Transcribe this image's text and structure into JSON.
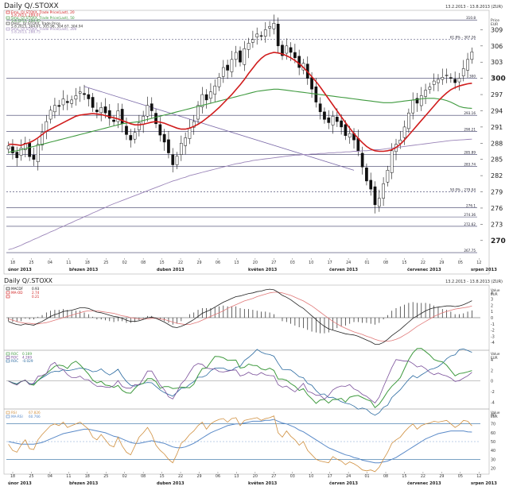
{
  "colors": {
    "up": "#ffffff",
    "down": "#111111",
    "ma20": "#d01c1c",
    "ma50": "#3f9a3f",
    "ma200": "#9a84b8",
    "fib": "#2a2a7a",
    "grid": "#3a3a66"
  },
  "top": {
    "title": "Daily Q/.STOXX",
    "date_range": "13.2.2013 - 13.8.2013 (ZUR)",
    "corner_labels": [
      "Price",
      "EUR"
    ],
    "legend": [
      {
        "name": "Ema, Q/.STOXX, Trade Price(Last), 20",
        "value": "5.8.2013, 299.07",
        "color": "#d01c1c"
      },
      {
        "name": "Sma, Q/.STOXX, Trade Price(Last), 50",
        "value": "5.8.2013, 294.45",
        "color": "#3f9a3f"
      },
      {
        "name": "OHLC, Q/.STOXX, Trade Price",
        "value": "5.8.2013, 304.67, 305.98, 304.67, 304.94",
        "color": "#333333"
      },
      {
        "name": "Sma, Q/.STOXX, Trade Price(Last), 200",
        "value": "5.8.2013, 288.75",
        "color": "#9a84b8"
      }
    ],
    "fib_labels": [
      {
        "y": 310.8,
        "text": "310.8"
      },
      {
        "y": 307.26,
        "text": "61.8% - 307.26"
      },
      {
        "y": 300.0,
        "text": "300"
      },
      {
        "y": 293.16,
        "text": "293.16"
      },
      {
        "y": 290.21,
        "text": "290.21"
      },
      {
        "y": 285.89,
        "text": "285.89"
      },
      {
        "y": 283.74,
        "text": "283.74"
      },
      {
        "y": 279.04,
        "text": "50.0% - 279.04"
      },
      {
        "y": 276.1,
        "text": "276.1"
      },
      {
        "y": 274.36,
        "text": "274.36"
      },
      {
        "y": 272.62,
        "text": "272.62"
      },
      {
        "y": 267.75,
        "text": "267.75"
      }
    ]
  },
  "x_axis": {
    "day_labels": [
      "18",
      "25",
      "04",
      "11",
      "18",
      "25",
      "02",
      "08",
      "15",
      "22",
      "29",
      "06",
      "13",
      "20",
      "27",
      "03",
      "10",
      "17",
      "24",
      "01",
      "08",
      "15",
      "22",
      "29",
      "05",
      "12"
    ],
    "month_labels": [
      "únor 2013",
      "březen 2013",
      "duben 2013",
      "květen 2013",
      "červen 2013",
      "červenec 2013",
      "srpen 2013"
    ]
  },
  "macd": {
    "title": "Daily Q/.STOXX",
    "date_range": "13.2.2013 - 13.8.2013 (ZUR)",
    "legend": [
      {
        "name": "MACDF",
        "value": "0.93",
        "color": "#111111"
      },
      {
        "name": "MA-OD",
        "value": "2.74",
        "color": "#d01c1c"
      },
      {
        "name": "",
        "value": "0.21",
        "color": "#d01c1c"
      }
    ],
    "corner_labels": [
      "Value",
      "EUR"
    ]
  },
  "roc": {
    "legend": [
      {
        "name": "ROC",
        "value": "0.169",
        "color": "#3f9a3f"
      },
      {
        "name": "ROC",
        "value": "4.269",
        "color": "#7a4f9a"
      },
      {
        "name": "ROC",
        "value": "-0.029",
        "color": "#2a6aa0"
      }
    ],
    "corner_labels": [
      "Value",
      "EUR"
    ]
  },
  "rsi": {
    "legend": [
      {
        "name": "RSI",
        "value": "67.826",
        "color": "#d09040"
      },
      {
        "name": "MA-RSI",
        "value": "60.766",
        "color": "#5a8ac8"
      }
    ],
    "corner_labels": [
      "Value",
      "EUR"
    ]
  },
  "chart_data": [
    {
      "type": "candlestick",
      "title": "Daily Q/.STOXX",
      "ylim": [
        266,
        312
      ],
      "y_ticks": [
        270,
        273,
        276,
        279,
        282,
        285,
        288,
        291,
        294,
        297,
        300,
        303,
        306,
        309
      ],
      "series": [
        {
          "name": "Ema, Q/.STOXX, Trade Price(Last), 20"
        },
        {
          "name": "Sma, Q/.STOXX, Trade Price(Last), 50"
        },
        {
          "name": "OHLC, Q/.STOXX, Trade Price"
        },
        {
          "name": "Sma, Q/.STOXX, Trade Price(Last), 200"
        }
      ],
      "closes": [
        287.5,
        286.2,
        285.3,
        287.1,
        288.0,
        285.5,
        285.0,
        287.8,
        290.0,
        292.0,
        294.1,
        295.0,
        294.8,
        296.2,
        295.5,
        296.0,
        296.8,
        297.5,
        297.0,
        296.2,
        294.6,
        293.8,
        294.6,
        293.6,
        292.6,
        292.0,
        294.0,
        291.6,
        289.6,
        288.6,
        290.0,
        291.8,
        293.0,
        295.0,
        294.0,
        291.6,
        289.5,
        288.2,
        286.2,
        284.0,
        285.6,
        288.0,
        289.0,
        290.8,
        292.0,
        295.0,
        297.0,
        296.0,
        297.5,
        298.6,
        300.2,
        302.0,
        301.5,
        303.5,
        304.8,
        303.0,
        305.5,
        306.5,
        307.2,
        308.2,
        307.8,
        309.0,
        309.6,
        310.2,
        306.0,
        304.2,
        306.0,
        304.8,
        303.8,
        302.0,
        302.8,
        300.0,
        298.0,
        295.6,
        293.8,
        292.4,
        291.8,
        293.0,
        292.0,
        291.0,
        289.4,
        289.8,
        288.6,
        286.6,
        283.6,
        281.0,
        279.5,
        276.6,
        277.8,
        280.5,
        283.0,
        286.6,
        287.8,
        288.6,
        291.0,
        293.6,
        296.0,
        295.4,
        296.8,
        297.8,
        298.4,
        299.5,
        299.8,
        300.2,
        300.6,
        300.0,
        299.2,
        300.0,
        301.8,
        303.5,
        304.9
      ],
      "ema20": [
        287.8,
        287.8,
        287.7,
        287.6,
        287.9,
        288.1,
        288.5,
        289.0,
        289.6,
        290.2,
        290.6,
        291.0,
        291.4,
        291.8,
        292.2,
        292.6,
        293.0,
        293.2,
        293.3,
        293.4,
        293.5,
        293.4,
        293.3,
        293.1,
        292.9,
        292.7,
        292.5,
        292.2,
        291.9,
        291.6,
        291.4,
        291.4,
        291.5,
        291.7,
        291.9,
        292.0,
        291.9,
        291.7,
        291.4,
        291.1,
        290.8,
        290.6,
        290.6,
        290.8,
        291.1,
        291.5,
        292.0,
        292.6,
        293.2,
        293.9,
        294.6,
        295.4,
        296.2,
        297.0,
        297.9,
        298.8,
        299.8,
        300.9,
        301.9,
        302.9,
        303.7,
        304.3,
        304.6,
        304.8,
        304.7,
        304.5,
        304.2,
        303.8,
        303.3,
        302.7,
        302.0,
        301.2,
        300.3,
        299.4,
        298.4,
        297.3,
        296.2,
        295.1,
        294.0,
        292.9,
        291.8,
        290.8,
        289.8,
        288.9,
        288.1,
        287.4,
        286.9,
        286.6,
        286.5,
        286.5,
        286.6,
        286.8,
        287.2,
        287.8,
        288.6,
        289.5,
        290.4,
        291.3,
        292.2,
        293.1,
        294.0,
        294.9,
        295.8,
        296.6,
        297.3,
        297.9,
        298.3,
        298.6,
        298.8,
        299.0,
        299.1
      ],
      "sma50": [
        286.3,
        286.5,
        286.6,
        286.8,
        287.0,
        287.2,
        287.4,
        287.6,
        287.8,
        288.0,
        288.2,
        288.4,
        288.6,
        288.8,
        289.0,
        289.2,
        289.4,
        289.6,
        289.8,
        290.0,
        290.2,
        290.4,
        290.6,
        290.8,
        291.0,
        291.2,
        291.4,
        291.6,
        291.7,
        291.8,
        291.9,
        292.0,
        292.2,
        292.4,
        292.6,
        292.8,
        293.0,
        293.2,
        293.4,
        293.6,
        293.8,
        294.0,
        294.2,
        294.4,
        294.6,
        294.8,
        295.0,
        295.2,
        295.4,
        295.6,
        295.8,
        296.0,
        296.2,
        296.4,
        296.6,
        296.8,
        297.0,
        297.2,
        297.4,
        297.6,
        297.7,
        297.8,
        297.9,
        298.0,
        298.0,
        297.9,
        297.8,
        297.7,
        297.6,
        297.5,
        297.4,
        297.3,
        297.2,
        297.1,
        297.0,
        296.9,
        296.8,
        296.7,
        296.6,
        296.5,
        296.4,
        296.3,
        296.2,
        296.1,
        296.0,
        295.9,
        295.8,
        295.7,
        295.6,
        295.5,
        295.5,
        295.5,
        295.6,
        295.7,
        295.8,
        295.9,
        296.0,
        296.1,
        296.2,
        296.3,
        296.3,
        296.3,
        296.2,
        296.1,
        295.9,
        295.6,
        295.2,
        294.8,
        294.6,
        294.5,
        294.45
      ],
      "sma200": [
        268.3,
        268.5,
        268.8,
        269.1,
        269.5,
        269.8,
        270.2,
        270.5,
        270.9,
        271.2,
        271.6,
        271.9,
        272.3,
        272.6,
        273.0,
        273.3,
        273.7,
        274.0,
        274.4,
        274.7,
        275.1,
        275.4,
        275.8,
        276.1,
        276.5,
        276.8,
        277.1,
        277.4,
        277.7,
        278.0,
        278.3,
        278.6,
        278.9,
        279.2,
        279.5,
        279.8,
        280.1,
        280.4,
        280.7,
        281.0,
        281.2,
        281.5,
        281.7,
        282.0,
        282.2,
        282.4,
        282.6,
        282.8,
        283.0,
        283.2,
        283.4,
        283.6,
        283.8,
        284.0,
        284.2,
        284.3,
        284.5,
        284.6,
        284.8,
        284.9,
        285.0,
        285.1,
        285.2,
        285.3,
        285.4,
        285.5,
        285.6,
        285.7,
        285.8,
        285.8,
        285.9,
        285.9,
        286.0,
        286.0,
        286.1,
        286.1,
        286.2,
        286.2,
        286.3,
        286.3,
        286.4,
        286.4,
        286.5,
        286.5,
        286.6,
        286.6,
        286.7,
        286.8,
        286.8,
        286.9,
        287.0,
        287.1,
        287.2,
        287.3,
        287.4,
        287.5,
        287.6,
        287.7,
        287.8,
        287.9,
        288.0,
        288.1,
        288.2,
        288.3,
        288.4,
        288.5,
        288.55,
        288.6,
        288.65,
        288.7,
        288.75
      ]
    },
    {
      "type": "line",
      "title": "MACD",
      "ylim": [
        -5,
        5
      ],
      "y_ticks": [
        -4,
        -3,
        -2,
        -1,
        0,
        1,
        2,
        3,
        4
      ],
      "series": [
        {
          "name": "MACDF"
        },
        {
          "name": "MA-OD"
        },
        {
          "name": ""
        }
      ],
      "macd": [
        -0.6,
        -0.9,
        -1.1,
        -1.2,
        -1.0,
        -1.1,
        -1.2,
        -0.9,
        -0.6,
        -0.2,
        0.2,
        0.5,
        0.7,
        1.0,
        1.1,
        1.2,
        1.4,
        1.6,
        1.6,
        1.5,
        1.2,
        0.9,
        0.8,
        0.6,
        0.4,
        0.2,
        0.1,
        -0.1,
        -0.4,
        -0.6,
        -0.6,
        -0.5,
        -0.3,
        0.0,
        0.1,
        -0.1,
        -0.4,
        -0.7,
        -1.1,
        -1.5,
        -1.6,
        -1.4,
        -1.1,
        -0.7,
        -0.3,
        0.2,
        0.7,
        1.0,
        1.3,
        1.7,
        2.1,
        2.5,
        2.8,
        3.1,
        3.4,
        3.5,
        3.7,
        3.9,
        4.0,
        4.2,
        4.3,
        4.5,
        4.6,
        4.5,
        4.1,
        3.6,
        3.3,
        2.9,
        2.4,
        1.9,
        1.5,
        0.9,
        0.3,
        -0.3,
        -0.9,
        -1.4,
        -1.8,
        -2.0,
        -2.2,
        -2.4,
        -2.6,
        -2.7,
        -2.8,
        -3.0,
        -3.3,
        -3.6,
        -3.9,
        -4.3,
        -4.3,
        -4.0,
        -3.5,
        -2.9,
        -2.4,
        -1.9,
        -1.3,
        -0.7,
        -0.1,
        0.3,
        0.7,
        1.1,
        1.4,
        1.6,
        1.7,
        1.8,
        1.9,
        1.9,
        1.8,
        1.9,
        2.1,
        2.4,
        2.74
      ],
      "signal": [
        -0.2,
        -0.4,
        -0.6,
        -0.8,
        -0.9,
        -0.9,
        -1.0,
        -1.0,
        -0.9,
        -0.8,
        -0.6,
        -0.4,
        -0.2,
        0.0,
        0.2,
        0.4,
        0.6,
        0.8,
        1.0,
        1.1,
        1.1,
        1.1,
        1.0,
        0.9,
        0.8,
        0.7,
        0.5,
        0.3,
        0.2,
        0.0,
        -0.1,
        -0.2,
        -0.2,
        -0.2,
        -0.1,
        -0.1,
        -0.2,
        -0.3,
        -0.5,
        -0.7,
        -0.9,
        -1.0,
        -1.1,
        -1.1,
        -0.9,
        -0.7,
        -0.4,
        -0.1,
        0.2,
        0.5,
        0.8,
        1.1,
        1.5,
        1.8,
        2.1,
        2.4,
        2.7,
        2.9,
        3.1,
        3.4,
        3.6,
        3.8,
        4.0,
        4.1,
        4.1,
        4.0,
        3.8,
        3.6,
        3.3,
        3.0,
        2.7,
        2.3,
        1.9,
        1.4,
        0.9,
        0.4,
        -0.1,
        -0.6,
        -1.0,
        -1.4,
        -1.7,
        -2.0,
        -2.3,
        -2.5,
        -2.7,
        -3.0,
        -3.2,
        -3.5,
        -3.7,
        -3.8,
        -3.8,
        -3.7,
        -3.5,
        -3.2,
        -2.8,
        -2.4,
        -1.9,
        -1.4,
        -1.0,
        -0.6,
        -0.2,
        0.2,
        0.5,
        0.8,
        1.0,
        1.2,
        1.4,
        1.5,
        1.6,
        1.7,
        1.9
      ]
    },
    {
      "type": "line",
      "title": "ROC",
      "ylim": [
        -5,
        5.5
      ],
      "y_ticks": [
        -4,
        -2,
        0,
        2,
        4
      ],
      "series": [
        {
          "name": "ROC"
        },
        {
          "name": "ROC"
        },
        {
          "name": "ROC"
        }
      ]
    },
    {
      "type": "line",
      "title": "RSI",
      "ylim": [
        15,
        85
      ],
      "y_ticks": [
        20,
        30,
        40,
        50,
        60,
        70,
        80
      ],
      "series": [
        {
          "name": "RSI"
        },
        {
          "name": "MA-RSI"
        }
      ],
      "rsi": [
        47,
        40,
        38,
        46,
        52,
        42,
        41,
        52,
        58,
        63,
        68,
        70,
        68,
        72,
        66,
        68,
        70,
        72,
        68,
        64,
        55,
        52,
        58,
        52,
        46,
        44,
        55,
        45,
        38,
        35,
        45,
        55,
        60,
        66,
        58,
        46,
        40,
        36,
        30,
        26,
        36,
        48,
        52,
        58,
        62,
        68,
        72,
        64,
        70,
        73,
        75,
        76,
        72,
        76,
        77,
        68,
        74,
        75,
        76,
        77,
        74,
        76,
        77,
        79,
        60,
        55,
        62,
        56,
        52,
        46,
        50,
        40,
        35,
        30,
        28,
        27,
        26,
        33,
        30,
        28,
        24,
        27,
        25,
        22,
        18,
        17,
        18,
        16,
        21,
        30,
        38,
        48,
        52,
        55,
        61,
        66,
        70,
        64,
        68,
        70,
        71,
        73,
        72,
        73,
        74,
        70,
        66,
        69,
        74,
        73,
        67.8
      ],
      "ma_rsi": [
        50,
        49,
        48,
        47,
        47,
        47,
        47,
        48,
        49,
        51,
        53,
        55,
        57,
        59,
        60,
        61,
        62,
        63,
        64,
        64,
        63,
        62,
        61,
        60,
        58,
        56,
        55,
        53,
        51,
        49,
        48,
        48,
        49,
        50,
        51,
        50,
        49,
        48,
        46,
        44,
        43,
        43,
        44,
        46,
        48,
        51,
        54,
        57,
        60,
        62,
        64,
        66,
        68,
        69,
        70,
        70,
        71,
        72,
        73,
        73,
        73,
        74,
        74,
        75,
        73,
        71,
        70,
        68,
        66,
        63,
        61,
        58,
        55,
        52,
        49,
        46,
        43,
        41,
        39,
        37,
        35,
        34,
        32,
        31,
        29,
        28,
        27,
        26,
        26,
        27,
        28,
        30,
        32,
        35,
        38,
        41,
        44,
        47,
        50,
        53,
        55,
        57,
        59,
        60,
        61,
        62,
        62,
        62,
        62,
        61,
        60.8
      ]
    }
  ]
}
